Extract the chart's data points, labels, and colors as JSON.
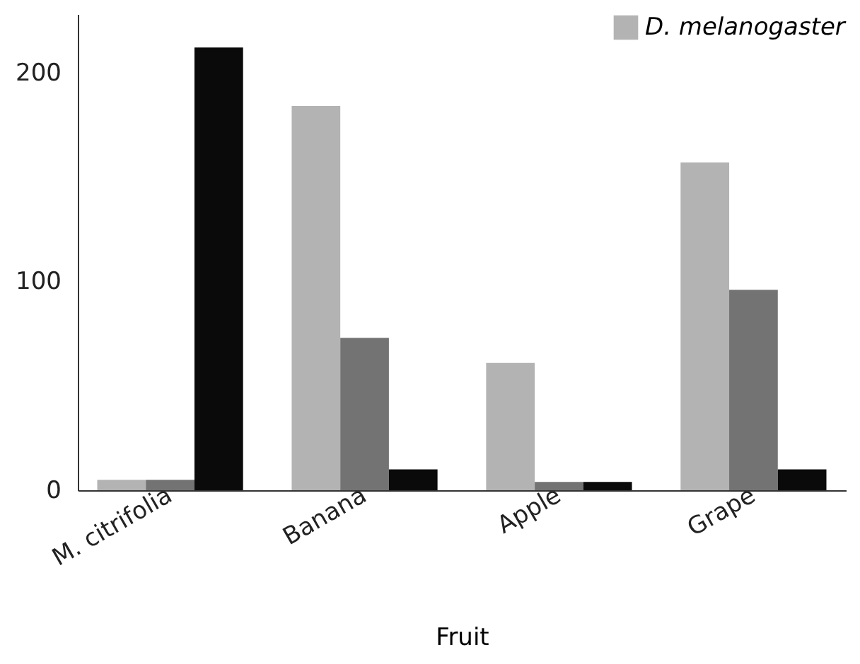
{
  "chart_data": {
    "type": "bar",
    "xlabel": "Fruit",
    "categories": [
      "M. citrifolia",
      "Banana",
      "Apple",
      "Grape"
    ],
    "series": [
      {
        "name": "D. melanogaster",
        "color": "#b3b3b3",
        "values": [
          5,
          184,
          61,
          157
        ]
      },
      {
        "color": "#737373",
        "values": [
          5,
          73,
          4,
          96
        ]
      },
      {
        "color": "#0a0a0a",
        "values": [
          212,
          10,
          4,
          10
        ]
      }
    ],
    "ylim": [
      0,
      228
    ],
    "yticks": [
      0,
      100,
      200
    ],
    "grid": false,
    "legend": "top right"
  }
}
